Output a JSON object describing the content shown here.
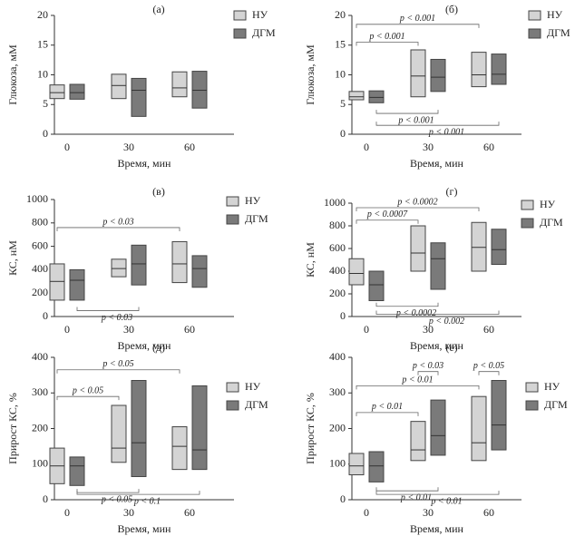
{
  "figure": {
    "x_axis_label": "Время, мин",
    "legend_labels": [
      "НУ",
      "ДГМ"
    ],
    "series_colors": {
      "НУ": "#d4d4d4",
      "ДГМ": "#7a7a7a"
    }
  },
  "chart_data": [
    {
      "type": "box",
      "panel": "(а)",
      "ylabel": "Глюкоза, мМ",
      "ylim": [
        0,
        20
      ],
      "yticks": [
        0,
        5,
        10,
        15,
        20
      ],
      "categories": [
        "0",
        "30",
        "60"
      ],
      "legend": "top-right",
      "series": [
        {
          "name": "НУ",
          "q1": [
            6.0,
            6.0,
            6.3
          ],
          "median": [
            7.0,
            8.2,
            7.8
          ],
          "q3": [
            8.3,
            10.1,
            10.5
          ]
        },
        {
          "name": "ДГМ",
          "q1": [
            5.9,
            3.0,
            4.4
          ],
          "median": [
            7.0,
            7.4,
            7.4
          ],
          "q3": [
            8.4,
            9.4,
            10.6
          ]
        }
      ],
      "annotations": []
    },
    {
      "type": "box",
      "panel": "(б)",
      "ylabel": "Глюкоза, мМ",
      "ylim": [
        0,
        20
      ],
      "yticks": [
        0,
        5,
        10,
        15,
        20
      ],
      "categories": [
        "0",
        "30",
        "60"
      ],
      "legend": "top-right",
      "series": [
        {
          "name": "НУ",
          "q1": [
            5.8,
            6.3,
            8.0
          ],
          "median": [
            6.3,
            9.8,
            10.0
          ],
          "q3": [
            7.2,
            14.2,
            13.8
          ]
        },
        {
          "name": "ДГМ",
          "q1": [
            5.3,
            7.2,
            8.4
          ],
          "median": [
            6.2,
            9.6,
            10.1
          ],
          "q3": [
            7.3,
            12.6,
            13.5
          ]
        }
      ],
      "annotations": [
        {
          "text": "p < 0.001",
          "from": [
            0,
            0
          ],
          "to": [
            2,
            0
          ],
          "pos": "above",
          "level": 18.5
        },
        {
          "text": "p < 0.001",
          "from": [
            0,
            0
          ],
          "to": [
            1,
            0
          ],
          "pos": "above",
          "level": 15.5
        },
        {
          "text": "p < 0.001",
          "from": [
            0,
            1
          ],
          "to": [
            1,
            1
          ],
          "pos": "below",
          "level": 3.5
        },
        {
          "text": "p < 0.001",
          "from": [
            0,
            1
          ],
          "to": [
            2,
            1
          ],
          "pos": "below",
          "level": 1.5
        }
      ]
    },
    {
      "type": "box",
      "panel": "(в)",
      "ylabel": "КС, нМ",
      "ylim": [
        0,
        1000
      ],
      "yticks": [
        0,
        200,
        400,
        600,
        800,
        1000
      ],
      "categories": [
        "0",
        "30",
        "60"
      ],
      "legend": "top-right",
      "series": [
        {
          "name": "НУ",
          "q1": [
            140,
            340,
            290
          ],
          "median": [
            300,
            410,
            450
          ],
          "q3": [
            450,
            490,
            640
          ]
        },
        {
          "name": "ДГМ",
          "q1": [
            140,
            270,
            250
          ],
          "median": [
            310,
            450,
            410
          ],
          "q3": [
            400,
            610,
            520
          ]
        }
      ],
      "annotations": [
        {
          "text": "p < 0.03",
          "from": [
            0,
            0
          ],
          "to": [
            2,
            0
          ],
          "pos": "above",
          "level": 760
        },
        {
          "text": "p < 0.03",
          "from": [
            0,
            1
          ],
          "to": [
            1,
            1
          ],
          "pos": "below",
          "level": 50
        }
      ]
    },
    {
      "type": "box",
      "panel": "(г)",
      "ylabel": "КС, нМ",
      "ylim": [
        0,
        1000
      ],
      "yticks": [
        0,
        200,
        400,
        600,
        800,
        1000
      ],
      "categories": [
        "0",
        "30",
        "60"
      ],
      "legend": "top-right",
      "series": [
        {
          "name": "НУ",
          "q1": [
            280,
            400,
            400
          ],
          "median": [
            380,
            560,
            610
          ],
          "q3": [
            510,
            800,
            830
          ]
        },
        {
          "name": "ДГМ",
          "q1": [
            140,
            240,
            460
          ],
          "median": [
            280,
            510,
            590
          ],
          "q3": [
            400,
            650,
            770
          ]
        }
      ],
      "annotations": [
        {
          "text": "p < 0.0002",
          "from": [
            0,
            0
          ],
          "to": [
            2,
            0
          ],
          "pos": "above",
          "level": 960
        },
        {
          "text": "p < 0.0007",
          "from": [
            0,
            0
          ],
          "to": [
            1,
            0
          ],
          "pos": "above",
          "level": 850
        },
        {
          "text": "p < 0.0002",
          "from": [
            0,
            1
          ],
          "to": [
            1,
            1
          ],
          "pos": "below",
          "level": 90
        },
        {
          "text": "p < 0.002",
          "from": [
            0,
            1
          ],
          "to": [
            2,
            1
          ],
          "pos": "below",
          "level": 20
        }
      ]
    },
    {
      "type": "box",
      "panel": "(д)",
      "ylabel": "Прирост КС, %",
      "ylim": [
        0,
        400
      ],
      "yticks": [
        0,
        100,
        200,
        300,
        400
      ],
      "categories": [
        "0",
        "30",
        "60"
      ],
      "legend": "top-right",
      "series": [
        {
          "name": "НУ",
          "q1": [
            45,
            105,
            85
          ],
          "median": [
            95,
            145,
            150
          ],
          "q3": [
            145,
            265,
            205
          ]
        },
        {
          "name": "ДГМ",
          "q1": [
            40,
            65,
            85
          ],
          "median": [
            95,
            160,
            140
          ],
          "q3": [
            120,
            335,
            320
          ]
        }
      ],
      "annotations": [
        {
          "text": "p < 0.05",
          "from": [
            0,
            0
          ],
          "to": [
            2,
            0
          ],
          "pos": "above",
          "level": 365
        },
        {
          "text": "p < 0.05",
          "from": [
            0,
            0
          ],
          "to": [
            1,
            0
          ],
          "pos": "above",
          "level": 290
        },
        {
          "text": "p < 0.05",
          "from": [
            0,
            1
          ],
          "to": [
            1,
            1
          ],
          "pos": "below",
          "level": 20
        },
        {
          "text": "p < 0.1",
          "from": [
            0,
            1
          ],
          "to": [
            2,
            1
          ],
          "pos": "below",
          "level": 15
        }
      ]
    },
    {
      "type": "box",
      "panel": "(е)",
      "ylabel": "Прирост КС, %",
      "ylim": [
        0,
        400
      ],
      "yticks": [
        0,
        100,
        200,
        300,
        400
      ],
      "categories": [
        "0",
        "30",
        "60"
      ],
      "legend": "top-right",
      "series": [
        {
          "name": "НУ",
          "q1": [
            70,
            110,
            110
          ],
          "median": [
            95,
            140,
            160
          ],
          "q3": [
            130,
            220,
            290
          ]
        },
        {
          "name": "ДГМ",
          "q1": [
            50,
            125,
            140
          ],
          "median": [
            95,
            180,
            210
          ],
          "q3": [
            135,
            280,
            335
          ]
        }
      ],
      "annotations": [
        {
          "text": "p < 0.01",
          "from": [
            0,
            0
          ],
          "to": [
            2,
            0
          ],
          "pos": "above",
          "level": 320
        },
        {
          "text": "p < 0.01",
          "from": [
            0,
            0
          ],
          "to": [
            1,
            0
          ],
          "pos": "above",
          "level": 245
        },
        {
          "text": "p < 0.03",
          "from": [
            1,
            0
          ],
          "to": [
            1,
            1
          ],
          "pos": "above",
          "level": 360
        },
        {
          "text": "p < 0.05",
          "from": [
            2,
            0
          ],
          "to": [
            2,
            1
          ],
          "pos": "above",
          "level": 360
        },
        {
          "text": "p < 0.01",
          "from": [
            0,
            1
          ],
          "to": [
            1,
            1
          ],
          "pos": "below",
          "level": 25
        },
        {
          "text": "p < 0.01",
          "from": [
            0,
            1
          ],
          "to": [
            2,
            1
          ],
          "pos": "below",
          "level": 15
        }
      ]
    }
  ]
}
